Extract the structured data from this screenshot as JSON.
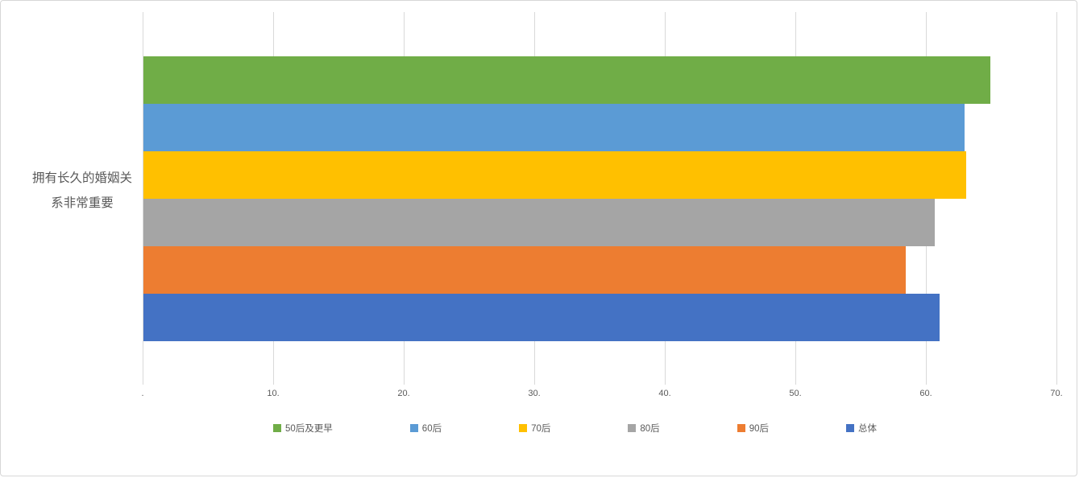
{
  "chart_data": {
    "type": "bar",
    "orientation": "horizontal",
    "title": "",
    "category": "拥有长久的婚姻关系非常重要",
    "category_lines": [
      "拥有长久的婚姻关",
      "系非常重要"
    ],
    "series": [
      {
        "name": "50后及更早",
        "value": 64.9,
        "color": "#70AD47"
      },
      {
        "name": "60后",
        "value": 62.9,
        "color": "#5B9BD5"
      },
      {
        "name": "70后",
        "value": 63.0,
        "color": "#FFC000"
      },
      {
        "name": "80后",
        "value": 60.6,
        "color": "#A5A5A5"
      },
      {
        "name": "90后",
        "value": 58.4,
        "color": "#ED7D31"
      },
      {
        "name": "总体",
        "value": 61.0,
        "color": "#4472C4"
      }
    ],
    "xlim": [
      0,
      70
    ],
    "x_tick_values": [
      0,
      10,
      20,
      30,
      40,
      50,
      60,
      70
    ],
    "x_tick_labels": [
      ".",
      "10.",
      "20.",
      "30.",
      "40.",
      "50.",
      "60.",
      "70."
    ],
    "grid": "vertical",
    "gridline_color": "#D9D9D9",
    "legend_position": "bottom",
    "text_color": "#595959"
  }
}
